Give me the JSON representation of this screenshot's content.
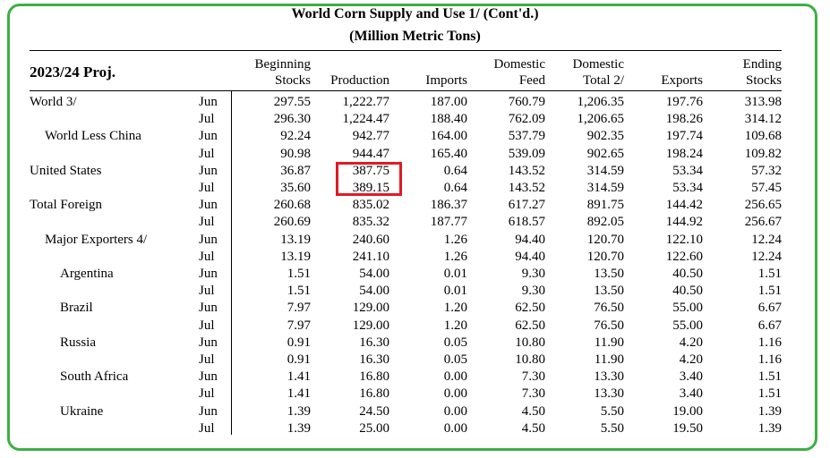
{
  "title": "World Corn Supply and Use  1/  (Cont'd.)",
  "subtitle": "(Million Metric Tons)",
  "period": "2023/24 Proj.",
  "columns": [
    {
      "line1": "Beginning",
      "line2": "Stocks"
    },
    {
      "line1": "",
      "line2": "Production"
    },
    {
      "line1": "",
      "line2": "Imports"
    },
    {
      "line1": "Domestic",
      "line2": "Feed"
    },
    {
      "line1": "Domestic",
      "line2": "Total 2/"
    },
    {
      "line1": "",
      "line2": "Exports"
    },
    {
      "line1": "Ending",
      "line2": "Stocks"
    }
  ],
  "rows": [
    {
      "label": "World  3/",
      "indent": 0,
      "month": "Jun",
      "values": [
        "297.55",
        "1,222.77",
        "187.00",
        "760.79",
        "1,206.35",
        "197.76",
        "313.98"
      ]
    },
    {
      "label": "",
      "indent": 0,
      "month": "Jul",
      "values": [
        "296.30",
        "1,224.47",
        "188.40",
        "762.09",
        "1,206.65",
        "198.26",
        "314.12"
      ]
    },
    {
      "label": "World Less China",
      "indent": 1,
      "month": "Jun",
      "values": [
        "92.24",
        "942.77",
        "164.00",
        "537.79",
        "902.35",
        "197.74",
        "109.68"
      ]
    },
    {
      "label": "",
      "indent": 1,
      "month": "Jul",
      "values": [
        "90.98",
        "944.47",
        "165.40",
        "539.09",
        "902.65",
        "198.24",
        "109.82"
      ]
    },
    {
      "label": "United States",
      "indent": 0,
      "month": "Jun",
      "values": [
        "36.87",
        "387.75",
        "0.64",
        "143.52",
        "314.59",
        "53.34",
        "57.32"
      ]
    },
    {
      "label": "",
      "indent": 0,
      "month": "Jul",
      "values": [
        "35.60",
        "389.15",
        "0.64",
        "143.52",
        "314.59",
        "53.34",
        "57.45"
      ]
    },
    {
      "label": "Total Foreign",
      "indent": 0,
      "month": "Jun",
      "values": [
        "260.68",
        "835.02",
        "186.37",
        "617.27",
        "891.75",
        "144.42",
        "256.65"
      ]
    },
    {
      "label": "",
      "indent": 0,
      "month": "Jul",
      "values": [
        "260.69",
        "835.32",
        "187.77",
        "618.57",
        "892.05",
        "144.92",
        "256.67"
      ]
    },
    {
      "label": "Major Exporters  4/",
      "indent": 1,
      "month": "Jun",
      "values": [
        "13.19",
        "240.60",
        "1.26",
        "94.40",
        "120.70",
        "122.10",
        "12.24"
      ]
    },
    {
      "label": "",
      "indent": 1,
      "month": "Jul",
      "values": [
        "13.19",
        "241.10",
        "1.26",
        "94.40",
        "120.70",
        "122.60",
        "12.24"
      ]
    },
    {
      "label": "Argentina",
      "indent": 2,
      "month": "Jun",
      "values": [
        "1.51",
        "54.00",
        "0.01",
        "9.30",
        "13.50",
        "40.50",
        "1.51"
      ]
    },
    {
      "label": "",
      "indent": 2,
      "month": "Jul",
      "values": [
        "1.51",
        "54.00",
        "0.01",
        "9.30",
        "13.50",
        "40.50",
        "1.51"
      ]
    },
    {
      "label": "Brazil",
      "indent": 2,
      "month": "Jun",
      "values": [
        "7.97",
        "129.00",
        "1.20",
        "62.50",
        "76.50",
        "55.00",
        "6.67"
      ]
    },
    {
      "label": "",
      "indent": 2,
      "month": "Jul",
      "values": [
        "7.97",
        "129.00",
        "1.20",
        "62.50",
        "76.50",
        "55.00",
        "6.67"
      ]
    },
    {
      "label": "Russia",
      "indent": 2,
      "month": "Jun",
      "values": [
        "0.91",
        "16.30",
        "0.05",
        "10.80",
        "11.90",
        "4.20",
        "1.16"
      ]
    },
    {
      "label": "",
      "indent": 2,
      "month": "Jul",
      "values": [
        "0.91",
        "16.30",
        "0.05",
        "10.80",
        "11.90",
        "4.20",
        "1.16"
      ]
    },
    {
      "label": "South Africa",
      "indent": 2,
      "month": "Jun",
      "values": [
        "1.41",
        "16.80",
        "0.00",
        "7.30",
        "13.30",
        "3.40",
        "1.51"
      ]
    },
    {
      "label": "",
      "indent": 2,
      "month": "Jul",
      "values": [
        "1.41",
        "16.80",
        "0.00",
        "7.30",
        "13.30",
        "3.40",
        "1.51"
      ]
    },
    {
      "label": "Ukraine",
      "indent": 2,
      "month": "Jun",
      "values": [
        "1.39",
        "24.50",
        "0.00",
        "4.50",
        "5.50",
        "19.00",
        "1.39"
      ]
    },
    {
      "label": "",
      "indent": 2,
      "month": "Jul",
      "values": [
        "1.39",
        "25.00",
        "0.00",
        "4.50",
        "5.50",
        "19.50",
        "1.39"
      ]
    }
  ],
  "colors": {
    "frame": "#3cb043",
    "highlight": "#e01b24"
  }
}
